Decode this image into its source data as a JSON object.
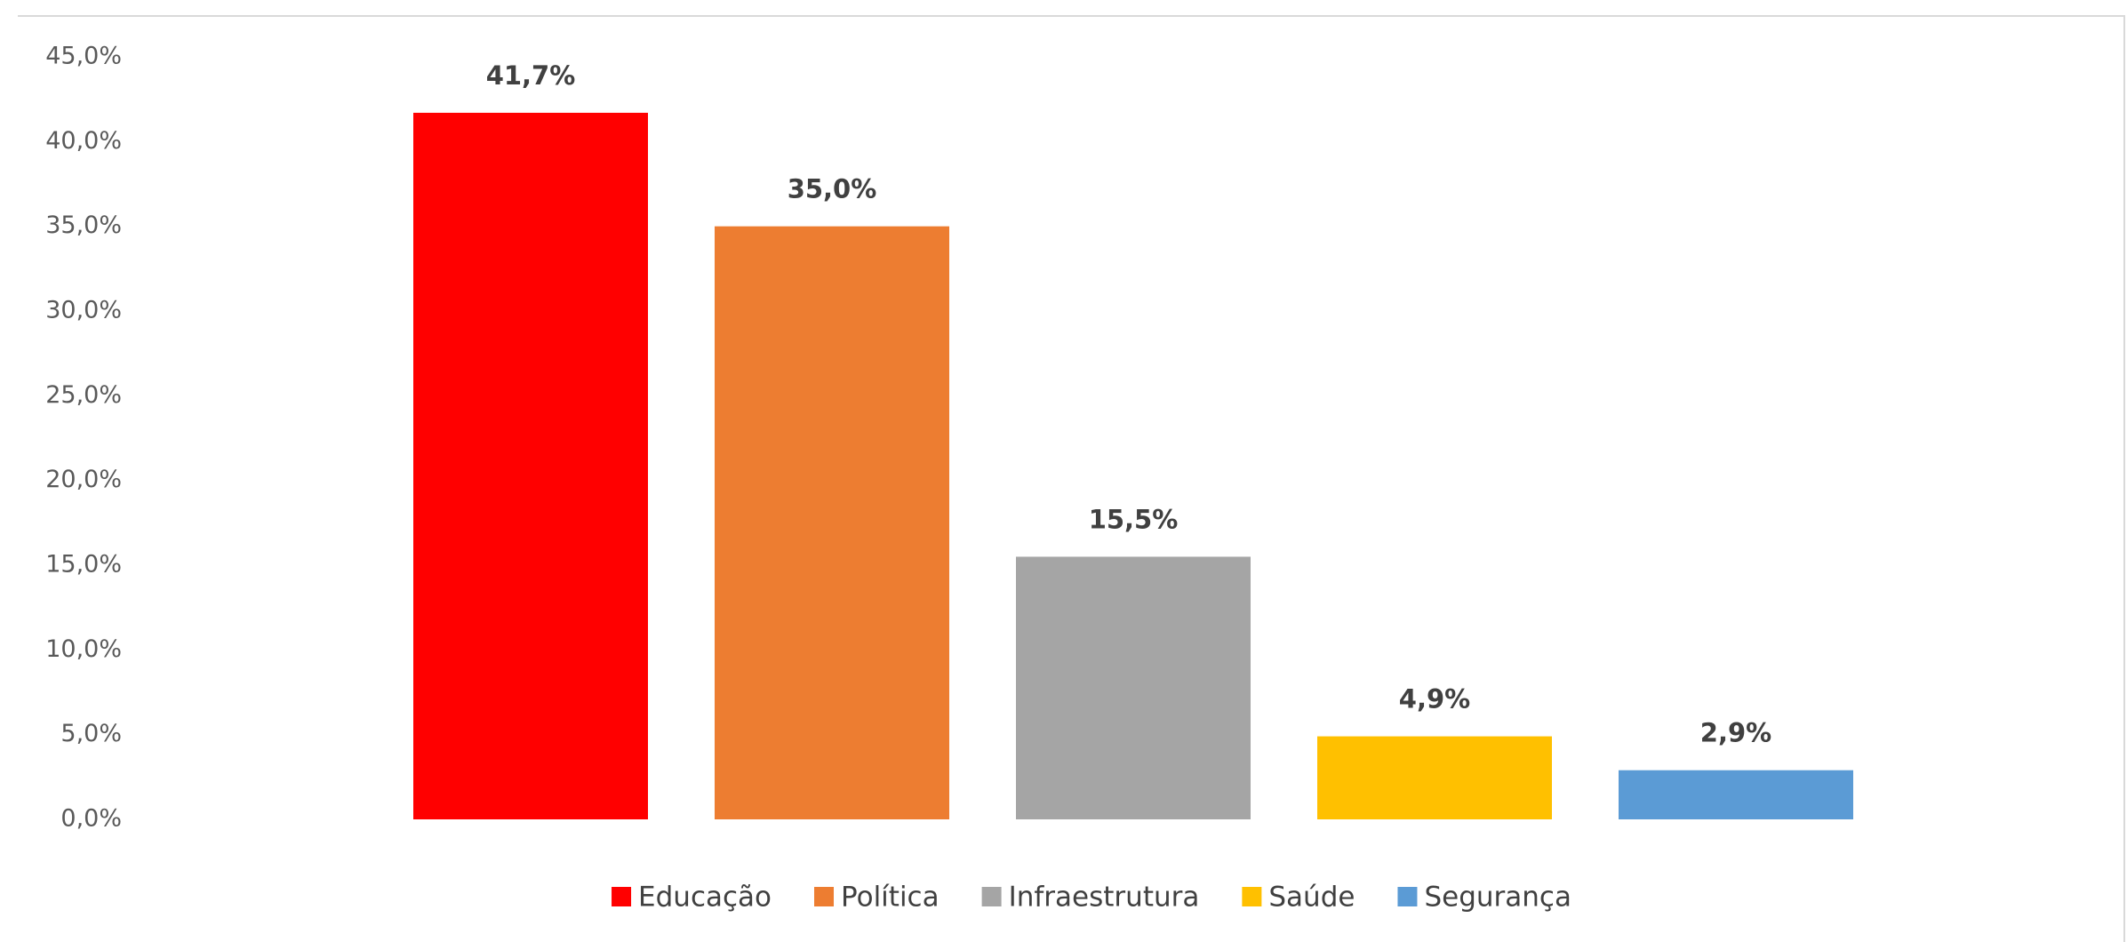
{
  "chart_data": {
    "type": "bar",
    "categories": [
      "Educação",
      "Política",
      "Infraestrutura",
      "Saúde",
      "Segurança"
    ],
    "values": [
      41.7,
      35.0,
      15.5,
      4.9,
      2.9
    ],
    "value_labels": [
      "41,7%",
      "35,0%",
      "15,5%",
      "4,9%",
      "2,9%"
    ],
    "colors": [
      "#ff0000",
      "#ed7d31",
      "#a5a5a5",
      "#ffc000",
      "#5b9bd5"
    ],
    "ylim": [
      0,
      45
    ],
    "yticks": [
      {
        "value": 0,
        "label": "0,0%"
      },
      {
        "value": 5,
        "label": "5,0%"
      },
      {
        "value": 10,
        "label": "10,0%"
      },
      {
        "value": 15,
        "label": "15,0%"
      },
      {
        "value": 20,
        "label": "20,0%"
      },
      {
        "value": 25,
        "label": "25,0%"
      },
      {
        "value": 30,
        "label": "30,0%"
      },
      {
        "value": 35,
        "label": "35,0%"
      },
      {
        "value": 40,
        "label": "40,0%"
      },
      {
        "value": 45,
        "label": "45,0%"
      }
    ],
    "grid": false,
    "legend": "bottom"
  }
}
